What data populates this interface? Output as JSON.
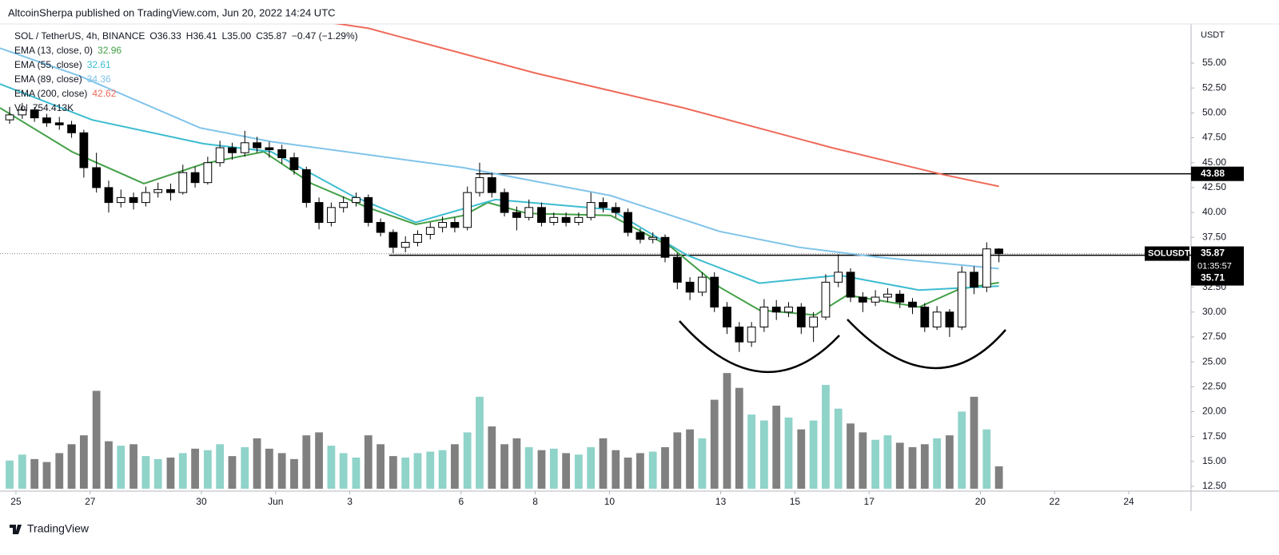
{
  "chart_data": {
    "type": "candlestick",
    "header": "AltcoinSherpa published on TradingView.com, Jun 20, 2022 14:24 UTC",
    "symbol": "SOL / TetherUS, 4h, BINANCE",
    "quote": [
      "O36.33",
      "H36.41",
      "L35.00",
      "C35.87",
      "−0.47 (−1.29%)"
    ],
    "y_axis_label": "USDT",
    "footer": "TradingView",
    "up_color": "#ffffff",
    "down_color": "#000000",
    "ylim": [
      12.02,
      58.93
    ],
    "yticks": [
      {
        "value": 12.5,
        "label": "12.50"
      },
      {
        "value": 15,
        "label": "15.00"
      },
      {
        "value": 17.5,
        "label": "17.50"
      },
      {
        "value": 20,
        "label": "20.00"
      },
      {
        "value": 22.5,
        "label": "22.50"
      },
      {
        "value": 25,
        "label": "25.00"
      },
      {
        "value": 27.5,
        "label": "27.50"
      },
      {
        "value": 30,
        "label": "30.00"
      },
      {
        "value": 32.5,
        "label": "32.50"
      },
      {
        "value": 35,
        "label": "35.00"
      },
      {
        "value": 37.5,
        "label": "37.50"
      },
      {
        "value": 40,
        "label": "40.00"
      },
      {
        "value": 42.5,
        "label": "42.50"
      },
      {
        "value": 45,
        "label": "45.00"
      },
      {
        "value": 47.5,
        "label": "47.50"
      },
      {
        "value": 50,
        "label": "50.00"
      },
      {
        "value": 52.5,
        "label": "52.50"
      },
      {
        "value": 55,
        "label": "55.00"
      }
    ],
    "xlim": [
      -0.43,
      31.68
    ],
    "xticks": [
      {
        "value": 0,
        "label": "25"
      },
      {
        "value": 2,
        "label": "27"
      },
      {
        "value": 5,
        "label": "30"
      },
      {
        "value": 7,
        "label": "Jun"
      },
      {
        "value": 9,
        "label": "3"
      },
      {
        "value": 12,
        "label": "6"
      },
      {
        "value": 14,
        "label": "8"
      },
      {
        "value": 16,
        "label": "10"
      },
      {
        "value": 19,
        "label": "13"
      },
      {
        "value": 21,
        "label": "15"
      },
      {
        "value": 23,
        "label": "17"
      },
      {
        "value": 26,
        "label": "20"
      },
      {
        "value": 28,
        "label": "22"
      },
      {
        "value": 30,
        "label": "24"
      }
    ],
    "x": [
      -0.17,
      0.17,
      0.5,
      0.83,
      1.17,
      1.5,
      1.83,
      2.17,
      2.5,
      2.83,
      3.17,
      3.5,
      3.83,
      4.17,
      4.5,
      4.83,
      5.17,
      5.5,
      5.83,
      6.17,
      6.5,
      6.83,
      7.17,
      7.5,
      7.83,
      8.17,
      8.5,
      8.83,
      9.17,
      9.5,
      9.83,
      10.17,
      10.5,
      10.83,
      11.17,
      11.5,
      11.83,
      12.17,
      12.5,
      12.83,
      13.17,
      13.5,
      13.83,
      14.17,
      14.5,
      14.83,
      15.17,
      15.5,
      15.83,
      16.17,
      16.5,
      16.83,
      17.17,
      17.5,
      17.83,
      18.17,
      18.5,
      18.83,
      19.17,
      19.5,
      19.83,
      20.17,
      20.5,
      20.83,
      21.17,
      21.5,
      21.83,
      22.17,
      22.5,
      22.83,
      23.17,
      23.5,
      23.83,
      24.17,
      24.5,
      24.83,
      25.17,
      25.5,
      25.83,
      26.17,
      26.5
    ],
    "ohlc": [
      [
        49.3,
        50.6,
        48.9,
        49.8
      ],
      [
        49.8,
        51.0,
        49.4,
        50.3
      ],
      [
        50.3,
        50.6,
        49.1,
        49.5
      ],
      [
        49.5,
        49.9,
        48.6,
        49.0
      ],
      [
        49.0,
        49.6,
        48.3,
        48.8
      ],
      [
        48.8,
        49.2,
        47.5,
        48.0
      ],
      [
        48.0,
        48.3,
        43.5,
        44.5
      ],
      [
        44.5,
        46.0,
        42.0,
        42.5
      ],
      [
        42.5,
        43.2,
        40.0,
        41.0
      ],
      [
        41.0,
        42.3,
        40.5,
        41.5
      ],
      [
        41.5,
        42.0,
        40.3,
        41.0
      ],
      [
        41.0,
        42.6,
        40.6,
        42.0
      ],
      [
        42.0,
        43.0,
        41.5,
        42.3
      ],
      [
        42.3,
        42.9,
        41.2,
        42.0
      ],
      [
        42.0,
        44.8,
        41.8,
        44.0
      ],
      [
        44.0,
        44.6,
        42.5,
        43.0
      ],
      [
        43.0,
        45.6,
        42.8,
        45.0
      ],
      [
        45.0,
        47.2,
        44.6,
        46.5
      ],
      [
        46.5,
        47.0,
        45.3,
        46.0
      ],
      [
        46.0,
        48.2,
        45.6,
        47.0
      ],
      [
        47.0,
        47.6,
        46.0,
        46.5
      ],
      [
        46.5,
        47.1,
        45.5,
        46.3
      ],
      [
        46.3,
        46.8,
        44.9,
        45.5
      ],
      [
        45.5,
        46.0,
        43.8,
        44.3
      ],
      [
        44.3,
        44.6,
        40.5,
        41.0
      ],
      [
        41.0,
        41.5,
        38.3,
        39.0
      ],
      [
        39.0,
        41.0,
        38.6,
        40.5
      ],
      [
        40.5,
        41.6,
        40.0,
        41.0
      ],
      [
        41.0,
        42.0,
        40.6,
        41.5
      ],
      [
        41.5,
        41.8,
        38.6,
        39.0
      ],
      [
        39.0,
        39.4,
        37.6,
        38.0
      ],
      [
        38.0,
        38.3,
        35.9,
        36.5
      ],
      [
        36.5,
        37.6,
        36.0,
        37.0
      ],
      [
        37.0,
        38.2,
        36.6,
        37.8
      ],
      [
        37.8,
        39.0,
        37.3,
        38.5
      ],
      [
        38.5,
        39.6,
        38.0,
        39.0
      ],
      [
        39.0,
        39.5,
        38.0,
        38.5
      ],
      [
        38.5,
        42.6,
        38.2,
        42.0
      ],
      [
        42.0,
        45.0,
        41.6,
        43.5
      ],
      [
        43.5,
        44.0,
        41.5,
        42.0
      ],
      [
        42.0,
        42.4,
        39.6,
        40.0
      ],
      [
        40.0,
        40.6,
        38.2,
        39.5
      ],
      [
        39.5,
        41.3,
        39.2,
        40.5
      ],
      [
        40.5,
        41.0,
        38.6,
        39.0
      ],
      [
        39.0,
        40.0,
        38.7,
        39.5
      ],
      [
        39.5,
        40.0,
        38.6,
        39.0
      ],
      [
        39.0,
        40.0,
        38.7,
        39.5
      ],
      [
        39.5,
        42.0,
        39.2,
        41.0
      ],
      [
        41.0,
        41.5,
        40.0,
        40.5
      ],
      [
        40.5,
        41.0,
        39.5,
        40.0
      ],
      [
        40.0,
        40.4,
        37.6,
        38.0
      ],
      [
        38.0,
        38.4,
        36.9,
        37.3
      ],
      [
        37.3,
        38.0,
        36.9,
        37.5
      ],
      [
        37.5,
        37.8,
        35.0,
        35.5
      ],
      [
        35.5,
        35.9,
        32.3,
        33.0
      ],
      [
        33.0,
        33.5,
        31.2,
        32.0
      ],
      [
        32.0,
        34.0,
        31.6,
        33.5
      ],
      [
        33.5,
        34.0,
        30.0,
        30.5
      ],
      [
        30.5,
        31.0,
        27.8,
        28.5
      ],
      [
        28.5,
        29.0,
        26.0,
        27.0
      ],
      [
        27.0,
        29.0,
        26.5,
        28.5
      ],
      [
        28.5,
        31.3,
        28.0,
        30.5
      ],
      [
        30.5,
        31.2,
        29.2,
        30.0
      ],
      [
        30.0,
        31.0,
        29.5,
        30.5
      ],
      [
        30.5,
        30.9,
        27.8,
        28.5
      ],
      [
        28.5,
        30.0,
        27.0,
        29.5
      ],
      [
        29.5,
        33.8,
        29.2,
        33.0
      ],
      [
        33.0,
        35.8,
        32.5,
        34.0
      ],
      [
        34.0,
        34.4,
        31.0,
        31.5
      ],
      [
        31.5,
        32.0,
        30.0,
        31.0
      ],
      [
        31.0,
        32.2,
        30.6,
        31.5
      ],
      [
        31.5,
        32.4,
        31.0,
        31.8
      ],
      [
        31.8,
        32.2,
        30.4,
        31.0
      ],
      [
        31.0,
        31.4,
        29.8,
        30.5
      ],
      [
        30.5,
        30.9,
        28.0,
        28.5
      ],
      [
        28.5,
        30.6,
        28.2,
        30.0
      ],
      [
        30.0,
        30.3,
        27.5,
        28.5
      ],
      [
        28.5,
        34.6,
        28.2,
        34.0
      ],
      [
        34.0,
        34.6,
        31.8,
        32.5
      ],
      [
        32.5,
        37.0,
        32.0,
        36.34
      ],
      [
        36.33,
        36.41,
        35.0,
        35.87
      ]
    ],
    "volume_name": "Vol",
    "volume_label": "754.413K",
    "volume_lim": [
      0,
      4200
    ],
    "volume_up_color": "#8fd3c9",
    "volume_down_color": "#808080",
    "volume": [
      950,
      1150,
      1000,
      900,
      1200,
      1500,
      1800,
      3300,
      1600,
      1450,
      1500,
      1100,
      1000,
      1050,
      1200,
      1350,
      1300,
      1500,
      1100,
      1400,
      1700,
      1350,
      1200,
      1000,
      1800,
      1900,
      1450,
      1200,
      1050,
      1800,
      1500,
      1100,
      1050,
      1200,
      1250,
      1300,
      1500,
      1900,
      3100,
      2100,
      1500,
      1700,
      1400,
      1300,
      1350,
      1200,
      1150,
      1400,
      1700,
      1300,
      1050,
      1200,
      1250,
      1400,
      1900,
      2000,
      1700,
      3000,
      3900,
      3400,
      2500,
      2300,
      2800,
      2400,
      2000,
      2300,
      3500,
      2700,
      2200,
      1900,
      1650,
      1800,
      1550,
      1400,
      1500,
      1700,
      1800,
      2600,
      3100,
      2000,
      754.413
    ],
    "indicators": [
      {
        "name": "EMA (13, close, 0)",
        "color": "#43a047",
        "last_label": "32.96",
        "x": [
          -0.43,
          1.51,
          3.45,
          5.06,
          6.68,
          7.97,
          9.48,
          10.78,
          12.07,
          12.72,
          13.79,
          16.03,
          17.67,
          18.97,
          20.04,
          21.55,
          22.41,
          24.35,
          25.43,
          26.5
        ],
        "values": [
          50.5,
          46.1,
          42.9,
          44.9,
          46.1,
          42.9,
          40.5,
          38.8,
          39.7,
          41.0,
          39.9,
          39.7,
          36.5,
          32.5,
          30.2,
          29.7,
          31.7,
          30.5,
          32.3,
          32.96
        ]
      },
      {
        "name": "EMA (55, close)",
        "color": "#3cbcd0",
        "last_label": "32.61",
        "x": [
          -0.43,
          2.05,
          5.06,
          6.88,
          9.05,
          10.78,
          12.93,
          16.03,
          18.1,
          20.04,
          22.2,
          24.35,
          26.5
        ],
        "values": [
          52.9,
          49.3,
          46.9,
          46.1,
          41.7,
          39.0,
          41.3,
          40.3,
          35.7,
          32.9,
          33.7,
          32.2,
          32.61
        ]
      },
      {
        "name": "EMA (89, close)",
        "color": "#80c4ea",
        "last_label": "34.36",
        "x": [
          -0.43,
          1.72,
          4.96,
          6.9,
          12.07,
          16.03,
          18.97,
          21.12,
          23.28,
          26.5
        ],
        "values": [
          56.5,
          53.7,
          48.5,
          47.1,
          44.5,
          41.7,
          38.1,
          36.5,
          35.5,
          34.36
        ]
      },
      {
        "name": "EMA (200, close)",
        "color": "#ef6a5a",
        "last_label": "42.62",
        "x": [
          -0.43,
          9.5,
          14,
          18,
          22,
          25,
          26.5
        ],
        "values": [
          64,
          58.5,
          54,
          50.5,
          46.5,
          43.8,
          42.62
        ]
      }
    ],
    "levels": [
      {
        "value": 43.88,
        "label": "43.88",
        "x0": 12.4
      },
      {
        "value": 35.71,
        "label": "35.71",
        "x0": 10.06
      }
    ],
    "last_price": {
      "value": 35.87,
      "name": "SOLUSDT",
      "label": "35.87",
      "countdown": "01:35:57"
    }
  }
}
